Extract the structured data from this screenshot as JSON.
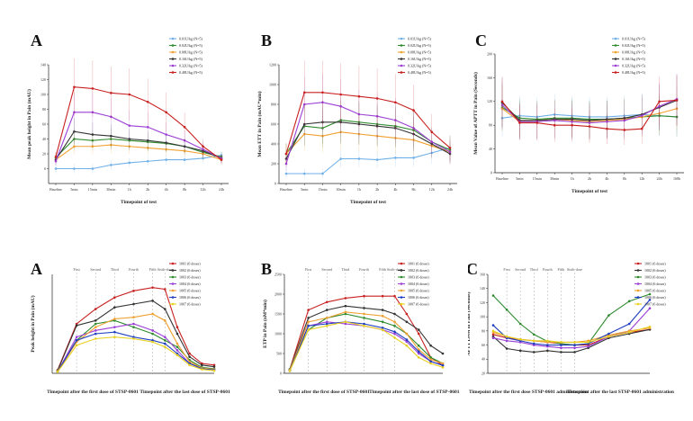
{
  "chart_data": [
    {
      "type": "line",
      "panel_label": "A",
      "xlabel": "Timepoint of test",
      "ylabel": "Mean peak height in Pain (mAU)",
      "categories": [
        "Baseline",
        "5min",
        "15min",
        "30min",
        "1h",
        "2h",
        "4h",
        "8h",
        "12h",
        "24h"
      ],
      "ylim": [
        -20,
        140
      ],
      "yticks": [
        0,
        20,
        40,
        60,
        80,
        100,
        120,
        140
      ],
      "series": [
        {
          "name": "0.01U/kg (N=5)",
          "color": "#6fb0e8",
          "values": [
            0,
            0,
            0,
            5,
            8,
            10,
            12,
            12,
            14,
            18
          ]
        },
        {
          "name": "0.02U/kg (N=5)",
          "color": "#2e8b2e",
          "values": [
            15,
            40,
            38,
            40,
            38,
            36,
            34,
            30,
            22,
            16
          ]
        },
        {
          "name": "0.08U/kg (N=5)",
          "color": "#f0a030",
          "values": [
            12,
            30,
            30,
            32,
            30,
            28,
            26,
            24,
            20,
            12
          ]
        },
        {
          "name": "0.16U/kg (N=5)",
          "color": "#333333",
          "values": [
            12,
            50,
            46,
            44,
            40,
            38,
            35,
            30,
            24,
            14
          ]
        },
        {
          "name": "0.32U/kg (N=5)",
          "color": "#9b3fd6",
          "values": [
            10,
            76,
            76,
            70,
            58,
            56,
            46,
            38,
            26,
            14
          ]
        },
        {
          "name": "0.48U/kg (N=5)",
          "color": "#c82020",
          "values": [
            16,
            110,
            108,
            102,
            100,
            90,
            76,
            56,
            30,
            12
          ]
        }
      ]
    },
    {
      "type": "line",
      "panel_label": "B",
      "xlabel": "Timepoint of test",
      "ylabel": "Mean ETT in Pain (mAU*min)",
      "categories": [
        "Baseline",
        "5min",
        "15min",
        "30min",
        "1h",
        "2h",
        "4h",
        "8h",
        "12h",
        "24h"
      ],
      "ylim": [
        0,
        1200
      ],
      "yticks": [
        0,
        200,
        400,
        600,
        800,
        1000,
        1200
      ],
      "series": [
        {
          "name": "0.01U/kg (N=5)",
          "color": "#6fb0e8",
          "values": [
            100,
            100,
            100,
            250,
            250,
            240,
            260,
            260,
            310,
            360
          ]
        },
        {
          "name": "0.02U/kg (N=5)",
          "color": "#2e8b2e",
          "values": [
            300,
            580,
            560,
            640,
            620,
            600,
            580,
            540,
            420,
            340
          ]
        },
        {
          "name": "0.08U/kg (N=5)",
          "color": "#f0a030",
          "values": [
            300,
            500,
            480,
            520,
            500,
            480,
            460,
            440,
            380,
            320
          ]
        },
        {
          "name": "0.16U/kg (N=5)",
          "color": "#333333",
          "values": [
            250,
            600,
            620,
            620,
            600,
            580,
            560,
            500,
            400,
            300
          ]
        },
        {
          "name": "0.32U/kg (N=5)",
          "color": "#9b3fd6",
          "values": [
            200,
            800,
            820,
            780,
            700,
            680,
            640,
            560,
            420,
            320
          ]
        },
        {
          "name": "0.48U/kg (N=5)",
          "color": "#c82020",
          "values": [
            300,
            920,
            920,
            900,
            880,
            860,
            820,
            740,
            520,
            360
          ]
        }
      ]
    },
    {
      "type": "line",
      "panel_label": "C",
      "xlabel": "Timepoint of test",
      "ylabel": "Mean Value of APTT in Pain (Seconds)",
      "categories": [
        "Baseline",
        "5min",
        "15min",
        "30min",
        "1h",
        "2h",
        "4h",
        "8h",
        "12h",
        "24h",
        "168h"
      ],
      "ylim": [
        0,
        200
      ],
      "yticks": [
        0,
        40,
        80,
        120,
        160,
        200
      ],
      "series": [
        {
          "name": "0.01U/kg (N=5)",
          "color": "#6fb0e8",
          "values": [
            92,
            96,
            94,
            98,
            96,
            94,
            94,
            96,
            98,
            96,
            94
          ]
        },
        {
          "name": "0.02U/kg (N=5)",
          "color": "#2e8b2e",
          "values": [
            110,
            92,
            90,
            92,
            92,
            90,
            90,
            92,
            94,
            96,
            94
          ]
        },
        {
          "name": "0.08U/kg (N=5)",
          "color": "#f0a030",
          "values": [
            108,
            86,
            88,
            90,
            88,
            86,
            88,
            90,
            94,
            100,
            108
          ]
        },
        {
          "name": "0.16U/kg (N=5)",
          "color": "#333333",
          "values": [
            118,
            88,
            88,
            90,
            90,
            88,
            90,
            92,
            98,
            110,
            122
          ]
        },
        {
          "name": "0.32U/kg (N=5)",
          "color": "#9b3fd6",
          "values": [
            114,
            86,
            86,
            88,
            86,
            84,
            86,
            88,
            96,
            112,
            124
          ]
        },
        {
          "name": "0.48U/kg (N=5)",
          "color": "#c82020",
          "values": [
            120,
            84,
            84,
            80,
            80,
            78,
            74,
            72,
            74,
            120,
            122
          ]
        }
      ]
    },
    {
      "type": "line",
      "panel_label": "A",
      "xlabel": "Timepoint after the first dose of STSP-0601",
      "xlabel2": "Timepoint after the last dose of STSP-0601",
      "ylabel": "Peak height in Pain (mAU)",
      "ylim": [
        0,
        300
      ],
      "annotations": [
        "First",
        "Second",
        "Third",
        "Fourth",
        "Fifth",
        "Sixth-dose"
      ],
      "series": [
        {
          "name": "1001 (6 doses)",
          "color": "#c82020",
          "values": [
            10,
            150,
            195,
            230,
            250,
            260,
            255,
            140,
            60,
            30,
            25
          ]
        },
        {
          "name": "1002 (6 doses)",
          "color": "#333333",
          "values": [
            8,
            145,
            160,
            200,
            210,
            220,
            195,
            120,
            50,
            25,
            20
          ]
        },
        {
          "name": "1003 (6 doses)",
          "color": "#2e8b2e",
          "values": [
            8,
            100,
            150,
            160,
            140,
            120,
            100,
            80,
            40,
            18,
            14
          ]
        },
        {
          "name": "1004 (6 doses)",
          "color": "#9b3fd6",
          "values": [
            5,
            110,
            130,
            140,
            150,
            130,
            110,
            70,
            30,
            15,
            12
          ]
        },
        {
          "name": "1005 (6 doses)",
          "color": "#f0a030",
          "values": [
            6,
            95,
            140,
            165,
            170,
            180,
            160,
            90,
            35,
            16,
            12
          ]
        },
        {
          "name": "1006 (6 doses)",
          "color": "#1f3fbf",
          "values": [
            4,
            100,
            120,
            125,
            110,
            100,
            90,
            60,
            30,
            14,
            10
          ]
        },
        {
          "name": "1007 (6 doses)",
          "color": "#e8d020",
          "values": [
            4,
            85,
            105,
            110,
            105,
            95,
            80,
            55,
            25,
            12,
            8
          ]
        }
      ]
    },
    {
      "type": "line",
      "panel_label": "B",
      "xlabel": "Timepoint after the first dose of STSP-0601",
      "xlabel2": "Timepoint after the last dose of STSP-0601",
      "ylabel": "ETP in Pain (nM*min)",
      "ylim": [
        0,
        2500
      ],
      "yticks": [
        0,
        500,
        1000,
        1500,
        2000,
        2500
      ],
      "annotations": [
        "First",
        "Second",
        "Third",
        "Fourth",
        "Fifth",
        "Sixth-dose"
      ],
      "series": [
        {
          "name": "1001 (6 doses)",
          "color": "#c82020",
          "values": [
            100,
            1600,
            1800,
            1900,
            1950,
            1950,
            1950,
            1500,
            1000,
            400,
            200
          ]
        },
        {
          "name": "1002 (6 doses)",
          "color": "#333333",
          "values": [
            100,
            1400,
            1600,
            1700,
            1650,
            1600,
            1500,
            1300,
            1100,
            700,
            500
          ]
        },
        {
          "name": "1003 (6 doses)",
          "color": "#2e8b2e",
          "values": [
            100,
            1100,
            1400,
            1500,
            1400,
            1300,
            1200,
            1000,
            700,
            400,
            250
          ]
        },
        {
          "name": "1004 (6 doses)",
          "color": "#9b3fd6",
          "values": [
            80,
            1200,
            1300,
            1250,
            1200,
            1100,
            1000,
            800,
            500,
            300,
            200
          ]
        },
        {
          "name": "1005 (6 doses)",
          "color": "#f0a030",
          "values": [
            80,
            1300,
            1400,
            1550,
            1500,
            1450,
            1300,
            1000,
            600,
            350,
            250
          ]
        },
        {
          "name": "1006 (6 doses)",
          "color": "#1f3fbf",
          "values": [
            60,
            1200,
            1250,
            1300,
            1250,
            1150,
            1050,
            850,
            550,
            300,
            200
          ]
        },
        {
          "name": "1007 (6 doses)",
          "color": "#e8d020",
          "values": [
            60,
            1100,
            1200,
            1300,
            1200,
            1100,
            900,
            700,
            400,
            250,
            150
          ]
        }
      ]
    },
    {
      "type": "line",
      "panel_label": "C",
      "xlabel": "Timepoint after the first dose STSP-0601 administration",
      "xlabel2": "Timepoint after the last STSP-0601 administration",
      "ylabel": "APTT Level in Pain (Seconds)",
      "ylim": [
        20,
        160
      ],
      "yticks": [
        20,
        40,
        60,
        80,
        100,
        120,
        140,
        160
      ],
      "annotations": [
        "First",
        "Second",
        "Third",
        "Fourth",
        "Fifth",
        "Sixth-dose"
      ],
      "series": [
        {
          "name": "1001 (6 doses)",
          "color": "#c82020",
          "values": [
            75,
            70,
            68,
            66,
            64,
            62,
            60,
            60,
            72,
            78,
            82
          ]
        },
        {
          "name": "1002 (6 doses)",
          "color": "#333333",
          "values": [
            72,
            55,
            52,
            50,
            52,
            50,
            50,
            56,
            70,
            76,
            82
          ]
        },
        {
          "name": "1003 (6 doses)",
          "color": "#2e8b2e",
          "values": [
            130,
            110,
            90,
            75,
            65,
            62,
            60,
            62,
            102,
            122,
            132
          ]
        },
        {
          "name": "1004 (6 doses)",
          "color": "#9b3fd6",
          "values": [
            70,
            66,
            64,
            60,
            58,
            56,
            56,
            58,
            72,
            80,
            112
          ]
        },
        {
          "name": "1005 (6 doses)",
          "color": "#f0a030",
          "values": [
            78,
            72,
            68,
            66,
            64,
            64,
            64,
            66,
            74,
            80,
            84
          ]
        },
        {
          "name": "1006 (6 doses)",
          "color": "#1f3fbf",
          "values": [
            88,
            70,
            66,
            62,
            60,
            60,
            60,
            62,
            76,
            90,
            124
          ]
        },
        {
          "name": "1007 (6 doses)",
          "color": "#e8d020",
          "values": [
            80,
            72,
            68,
            66,
            66,
            64,
            64,
            64,
            72,
            78,
            86
          ]
        }
      ]
    }
  ]
}
